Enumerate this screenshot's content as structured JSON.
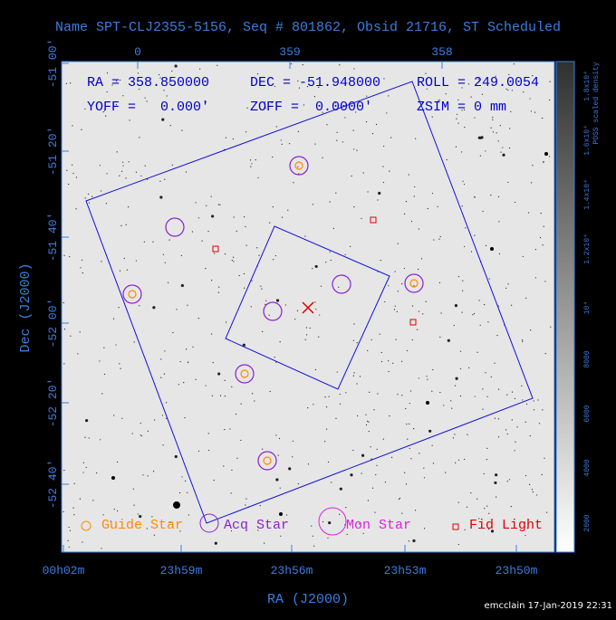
{
  "title": "Name SPT-CLJ2355-5156, Seq # 801862, Obsid 21716, ST Scheduled",
  "top_axis": {
    "labels": [
      "0",
      "359",
      "358"
    ]
  },
  "left_axis": {
    "title": "Dec (J2000)",
    "labels": [
      "-51 00'",
      "-51 20'",
      "-51 40'",
      "-52 00'",
      "-52 20'",
      "-52 40'"
    ]
  },
  "bottom_axis": {
    "title": "RA (J2000)",
    "labels": [
      "00h02m",
      "23h59m",
      "23h56m",
      "23h53m",
      "23h50m"
    ]
  },
  "header": {
    "ra": "RA = 358.850000",
    "dec": "DEC = -51.948000",
    "roll": "ROLL = 249.0054",
    "yoff": "YOFF =   0.000'",
    "zoff": "ZOFF =  0.0000'",
    "zsim": "ZSIM = 0 mm"
  },
  "legend": [
    "Guide Star",
    "Acq Star",
    "Mon Star",
    "Fid Light"
  ],
  "colorbar": {
    "title": "POSS scaled density",
    "labels": [
      "2000",
      "4000",
      "6000",
      "8000",
      "10⁴",
      "1.2x10⁴",
      "1.4x10⁴",
      "1.6x10⁴",
      "1.8x10⁴"
    ]
  },
  "footer": "emcclain 17-Jan-2019 22:31"
}
